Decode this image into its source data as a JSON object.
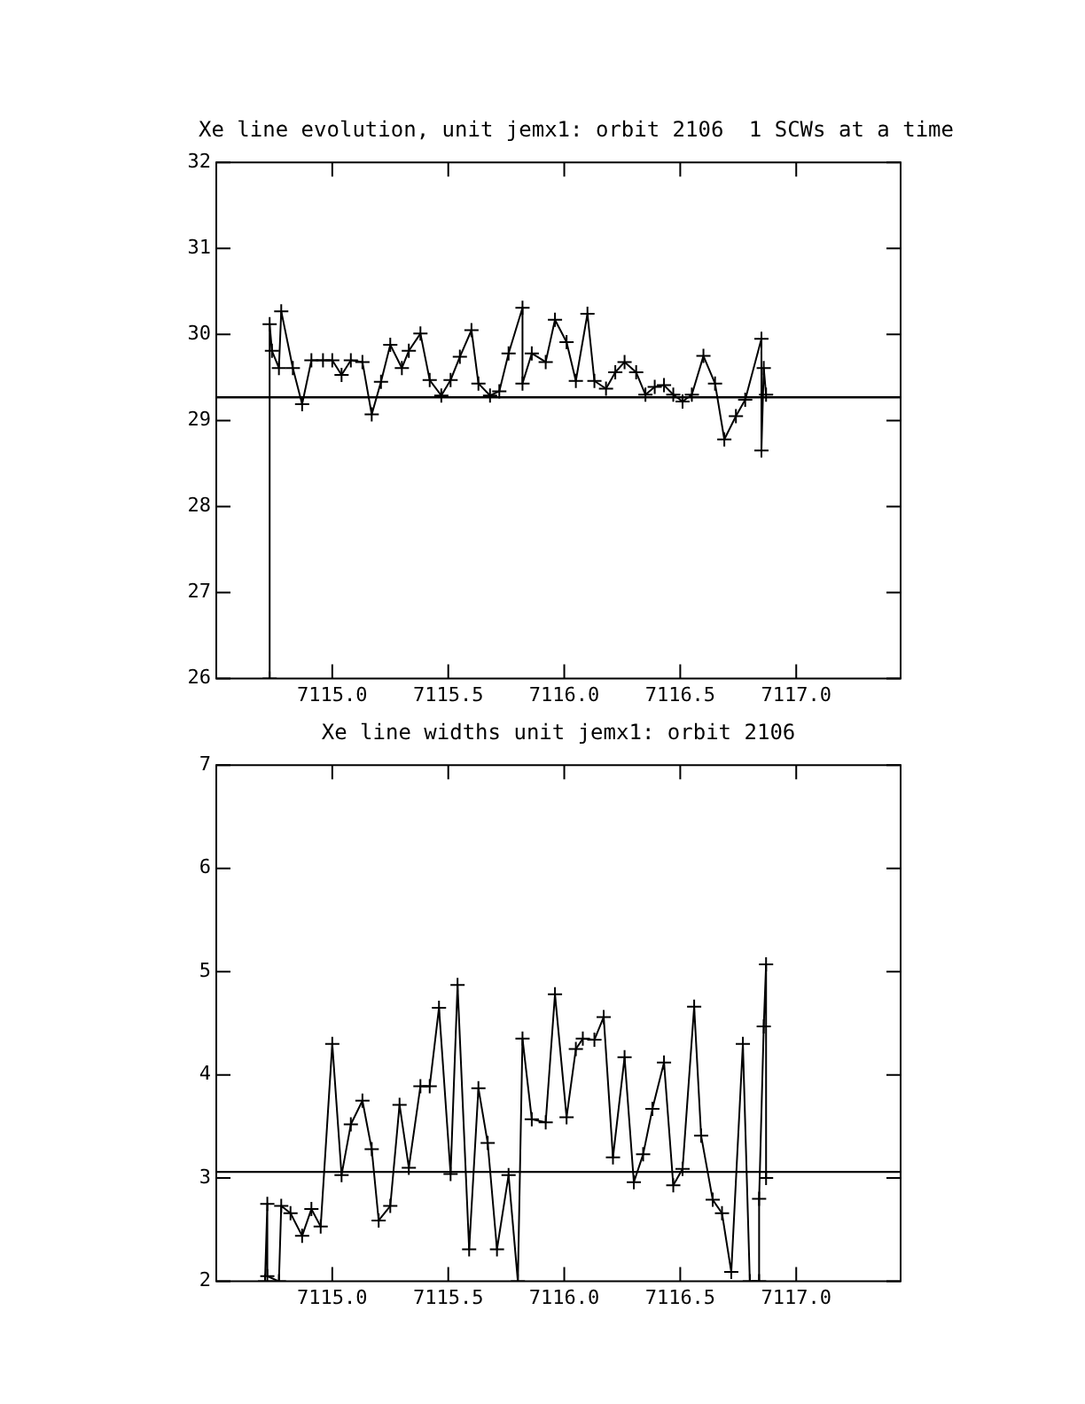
{
  "chart_data": [
    {
      "type": "line",
      "title": "Xe line evolution, unit jemx1: orbit 2106",
      "subtitle": "1 SCWs at a time",
      "marker": "cross",
      "xlim": [
        7114.5,
        7117.45
      ],
      "ylim": [
        26,
        32
      ],
      "xticks": [
        {
          "value": 7115,
          "label": "7115.0"
        },
        {
          "value": 7115.5,
          "label": "7115.5"
        },
        {
          "value": 7116,
          "label": "7116.0"
        },
        {
          "value": 7116.5,
          "label": "7116.5"
        },
        {
          "value": 7117,
          "label": "7117.0"
        }
      ],
      "yticks": [
        26,
        27,
        28,
        29,
        30,
        31,
        32
      ],
      "ref_lines": [
        {
          "axis": "y",
          "value": 29.27
        }
      ],
      "series": [
        {
          "color": "#000000",
          "x": [
            7114.73,
            7114.73,
            7114.74,
            7114.77,
            7114.78,
            7114.83,
            7114.87,
            7114.91,
            7114.96,
            7115.0,
            7115.04,
            7115.08,
            7115.13,
            7115.17,
            7115.21,
            7115.25,
            7115.3,
            7115.33,
            7115.38,
            7115.42,
            7115.47,
            7115.51,
            7115.55,
            7115.6,
            7115.63,
            7115.68,
            7115.72,
            7115.76,
            7115.82,
            7115.82,
            7115.86,
            7115.92,
            7115.96,
            7116.01,
            7116.05,
            7116.1,
            7116.13,
            7116.18,
            7116.22,
            7116.26,
            7116.31,
            7116.35,
            7116.39,
            7116.43,
            7116.47,
            7116.51,
            7116.55,
            7116.6,
            7116.65,
            7116.69,
            7116.74,
            7116.78,
            7116.85,
            7116.85,
            7116.86,
            7116.87
          ],
          "values": [
            26,
            30.12,
            29.81,
            29.61,
            30.27,
            29.61,
            29.19,
            29.7,
            29.7,
            29.7,
            29.53,
            29.7,
            29.68,
            29.07,
            29.45,
            29.88,
            29.61,
            29.81,
            30.01,
            29.47,
            29.29,
            29.47,
            29.74,
            30.05,
            29.43,
            29.29,
            29.34,
            29.78,
            30.31,
            29.43,
            29.78,
            29.68,
            30.17,
            29.91,
            29.46,
            30.24,
            29.46,
            29.37,
            29.56,
            29.68,
            29.56,
            29.3,
            29.39,
            29.41,
            29.3,
            29.22,
            29.3,
            29.75,
            29.43,
            28.78,
            29.05,
            29.24,
            29.95,
            28.65,
            29.61,
            29.3
          ]
        }
      ]
    },
    {
      "type": "line",
      "title": "Xe line widths unit jemx1: orbit 2106",
      "marker": "cross",
      "xlim": [
        7114.5,
        7117.45
      ],
      "ylim": [
        2,
        7
      ],
      "xticks": [
        {
          "value": 7115,
          "label": "7115.0"
        },
        {
          "value": 7115.5,
          "label": "7115.5"
        },
        {
          "value": 7116,
          "label": "7116.0"
        },
        {
          "value": 7116.5,
          "label": "7116.5"
        },
        {
          "value": 7117,
          "label": "7117.0"
        }
      ],
      "yticks": [
        2,
        3,
        4,
        5,
        6,
        7
      ],
      "ref_lines": [
        {
          "axis": "y",
          "value": 3.06
        }
      ],
      "series": [
        {
          "color": "#000000",
          "x": [
            7114.71,
            7114.72,
            7114.72,
            7114.77,
            7114.78,
            7114.82,
            7114.87,
            7114.91,
            7114.95,
            7115.0,
            7115.04,
            7115.08,
            7115.13,
            7115.17,
            7115.2,
            7115.25,
            7115.29,
            7115.33,
            7115.38,
            7115.42,
            7115.46,
            7115.51,
            7115.54,
            7115.59,
            7115.63,
            7115.67,
            7115.71,
            7115.76,
            7115.8,
            7115.82,
            7115.86,
            7115.92,
            7115.96,
            7116.01,
            7116.05,
            7116.08,
            7116.13,
            7116.17,
            7116.21,
            7116.26,
            7116.3,
            7116.34,
            7116.38,
            7116.43,
            7116.47,
            7116.51,
            7116.56,
            7116.59,
            7116.64,
            7116.68,
            7116.72,
            7116.77,
            7116.8,
            7116.84,
            7116.84,
            7116.86,
            7116.87,
            7116.87
          ],
          "values": [
            2,
            2.75,
            2.05,
            2,
            2.73,
            2.66,
            2.44,
            2.7,
            2.53,
            4.3,
            3.03,
            3.52,
            3.75,
            3.28,
            2.59,
            2.73,
            3.71,
            3.1,
            3.89,
            3.89,
            4.65,
            3.04,
            4.87,
            2.31,
            3.87,
            3.34,
            2.31,
            3.03,
            2,
            4.35,
            3.57,
            3.54,
            4.78,
            3.59,
            4.25,
            4.35,
            4.34,
            4.56,
            3.2,
            4.17,
            2.96,
            3.23,
            3.67,
            4.12,
            2.93,
            3.09,
            4.66,
            3.41,
            2.79,
            2.66,
            2.09,
            4.3,
            2,
            2,
            2.8,
            4.47,
            5.07,
            3.0
          ]
        }
      ]
    }
  ]
}
